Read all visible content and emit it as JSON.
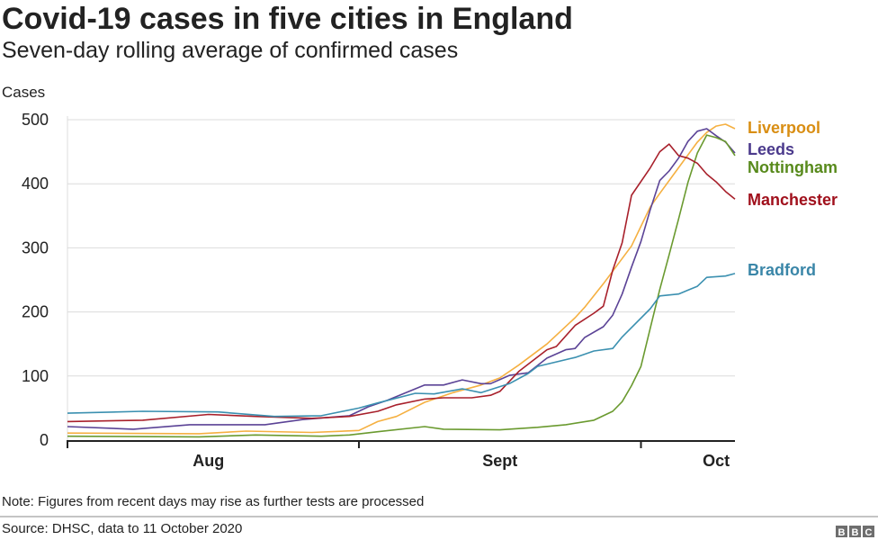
{
  "chart_data": {
    "type": "line",
    "title": "Covid-19 cases in five cities in England",
    "subtitle": "Seven-day rolling average of confirmed cases",
    "ylabel": "Cases",
    "xlabel": "",
    "ylim": [
      0,
      500
    ],
    "yticks": [
      0,
      100,
      200,
      300,
      400,
      500
    ],
    "xlim": [
      "2020-08-01",
      "2020-10-11"
    ],
    "xtick_boundaries": [
      "2020-08-01",
      "2020-09-01",
      "2020-10-01"
    ],
    "xtick_labels": [
      {
        "label": "Aug",
        "date": "2020-08-16"
      },
      {
        "label": "Sept",
        "date": "2020-09-16"
      },
      {
        "label": "Oct",
        "date": "2020-10-09"
      }
    ],
    "grid": true,
    "legend": "direct labels at right",
    "series": [
      {
        "name": "Liverpool",
        "color": "#f5b041",
        "label_color": "#d98e13",
        "points": [
          [
            "2020-08-01",
            11
          ],
          [
            "2020-08-15",
            10
          ],
          [
            "2020-08-20",
            14
          ],
          [
            "2020-08-27",
            12
          ],
          [
            "2020-09-01",
            15
          ],
          [
            "2020-09-03",
            29
          ],
          [
            "2020-09-05",
            37
          ],
          [
            "2020-09-08",
            59
          ],
          [
            "2020-09-11",
            74
          ],
          [
            "2020-09-14",
            86
          ],
          [
            "2020-09-16",
            97
          ],
          [
            "2020-09-18",
            117
          ],
          [
            "2020-09-21",
            150
          ],
          [
            "2020-09-24",
            191
          ],
          [
            "2020-09-25",
            207
          ],
          [
            "2020-09-27",
            244
          ],
          [
            "2020-09-30",
            303
          ],
          [
            "2020-10-02",
            364
          ],
          [
            "2020-10-03",
            385
          ],
          [
            "2020-10-05",
            425
          ],
          [
            "2020-10-06",
            445
          ],
          [
            "2020-10-07",
            465
          ],
          [
            "2020-10-08",
            480
          ],
          [
            "2020-10-09",
            490
          ],
          [
            "2020-10-10",
            493
          ],
          [
            "2020-10-11",
            486
          ]
        ]
      },
      {
        "name": "Leeds",
        "color": "#5b4396",
        "label_color": "#4b3a8c",
        "points": [
          [
            "2020-08-01",
            21
          ],
          [
            "2020-08-08",
            17
          ],
          [
            "2020-08-14",
            24
          ],
          [
            "2020-08-22",
            24
          ],
          [
            "2020-08-26",
            32
          ],
          [
            "2020-08-31",
            38
          ],
          [
            "2020-09-02",
            52
          ],
          [
            "2020-09-04",
            62
          ],
          [
            "2020-09-08",
            86
          ],
          [
            "2020-09-10",
            86
          ],
          [
            "2020-09-12",
            94
          ],
          [
            "2020-09-14",
            88
          ],
          [
            "2020-09-15",
            88
          ],
          [
            "2020-09-17",
            101
          ],
          [
            "2020-09-19",
            105
          ],
          [
            "2020-09-21",
            128
          ],
          [
            "2020-09-23",
            141
          ],
          [
            "2020-09-24",
            143
          ],
          [
            "2020-09-25",
            160
          ],
          [
            "2020-09-27",
            177
          ],
          [
            "2020-09-28",
            195
          ],
          [
            "2020-09-29",
            228
          ],
          [
            "2020-09-30",
            270
          ],
          [
            "2020-10-01",
            310
          ],
          [
            "2020-10-02",
            360
          ],
          [
            "2020-10-03",
            405
          ],
          [
            "2020-10-04",
            420
          ],
          [
            "2020-10-05",
            440
          ],
          [
            "2020-10-06",
            466
          ],
          [
            "2020-10-07",
            482
          ],
          [
            "2020-10-08",
            486
          ],
          [
            "2020-10-09",
            475
          ],
          [
            "2020-10-10",
            465
          ],
          [
            "2020-10-11",
            448
          ]
        ]
      },
      {
        "name": "Nottingham",
        "color": "#6a9a2f",
        "label_color": "#588a1c",
        "points": [
          [
            "2020-08-01",
            6
          ],
          [
            "2020-08-15",
            5
          ],
          [
            "2020-08-21",
            8
          ],
          [
            "2020-08-28",
            6
          ],
          [
            "2020-08-31",
            8
          ],
          [
            "2020-09-03",
            13
          ],
          [
            "2020-09-08",
            21
          ],
          [
            "2020-09-10",
            17
          ],
          [
            "2020-09-16",
            16
          ],
          [
            "2020-09-20",
            20
          ],
          [
            "2020-09-23",
            24
          ],
          [
            "2020-09-26",
            31
          ],
          [
            "2020-09-28",
            45
          ],
          [
            "2020-09-29",
            60
          ],
          [
            "2020-09-30",
            85
          ],
          [
            "2020-10-01",
            115
          ],
          [
            "2020-10-02",
            175
          ],
          [
            "2020-10-03",
            235
          ],
          [
            "2020-10-04",
            289
          ],
          [
            "2020-10-05",
            345
          ],
          [
            "2020-10-06",
            402
          ],
          [
            "2020-10-07",
            448
          ],
          [
            "2020-10-08",
            476
          ],
          [
            "2020-10-09",
            472
          ],
          [
            "2020-10-10",
            466
          ],
          [
            "2020-10-11",
            444
          ]
        ]
      },
      {
        "name": "Manchester",
        "color": "#a8202b",
        "label_color": "#a0101c",
        "points": [
          [
            "2020-08-01",
            29
          ],
          [
            "2020-08-09",
            31
          ],
          [
            "2020-08-16",
            40
          ],
          [
            "2020-08-21",
            37
          ],
          [
            "2020-08-27",
            34
          ],
          [
            "2020-08-31",
            37
          ],
          [
            "2020-09-03",
            45
          ],
          [
            "2020-09-05",
            55
          ],
          [
            "2020-09-08",
            64
          ],
          [
            "2020-09-10",
            66
          ],
          [
            "2020-09-13",
            66
          ],
          [
            "2020-09-15",
            70
          ],
          [
            "2020-09-16",
            76
          ],
          [
            "2020-09-18",
            107
          ],
          [
            "2020-09-21",
            141
          ],
          [
            "2020-09-22",
            146
          ],
          [
            "2020-09-24",
            179
          ],
          [
            "2020-09-26",
            198
          ],
          [
            "2020-09-27",
            209
          ],
          [
            "2020-09-28",
            265
          ],
          [
            "2020-09-29",
            308
          ],
          [
            "2020-09-30",
            382
          ],
          [
            "2020-10-02",
            425
          ],
          [
            "2020-10-03",
            450
          ],
          [
            "2020-10-04",
            462
          ],
          [
            "2020-10-05",
            444
          ],
          [
            "2020-10-06",
            440
          ],
          [
            "2020-10-07",
            432
          ],
          [
            "2020-10-08",
            415
          ],
          [
            "2020-10-09",
            403
          ],
          [
            "2020-10-10",
            388
          ],
          [
            "2020-10-11",
            376
          ]
        ]
      },
      {
        "name": "Bradford",
        "color": "#3b90b0",
        "label_color": "#3a86a8",
        "points": [
          [
            "2020-08-01",
            42
          ],
          [
            "2020-08-09",
            45
          ],
          [
            "2020-08-17",
            44
          ],
          [
            "2020-08-23",
            37
          ],
          [
            "2020-08-28",
            38
          ],
          [
            "2020-09-01",
            50
          ],
          [
            "2020-09-03",
            58
          ],
          [
            "2020-09-07",
            73
          ],
          [
            "2020-09-09",
            72
          ],
          [
            "2020-09-12",
            80
          ],
          [
            "2020-09-14",
            74
          ],
          [
            "2020-09-17",
            88
          ],
          [
            "2020-09-19",
            104
          ],
          [
            "2020-09-20",
            115
          ],
          [
            "2020-09-24",
            129
          ],
          [
            "2020-09-26",
            139
          ],
          [
            "2020-09-28",
            143
          ],
          [
            "2020-09-29",
            161
          ],
          [
            "2020-10-02",
            205
          ],
          [
            "2020-10-03",
            225
          ],
          [
            "2020-10-05",
            228
          ],
          [
            "2020-10-07",
            240
          ],
          [
            "2020-10-08",
            254
          ],
          [
            "2020-10-10",
            256
          ],
          [
            "2020-10-11",
            260
          ]
        ]
      }
    ]
  },
  "footer": {
    "note": "Note: Figures from recent days may rise as further tests are processed",
    "source": "Source: DHSC, data to 11 October 2020",
    "logo": "BBC"
  }
}
